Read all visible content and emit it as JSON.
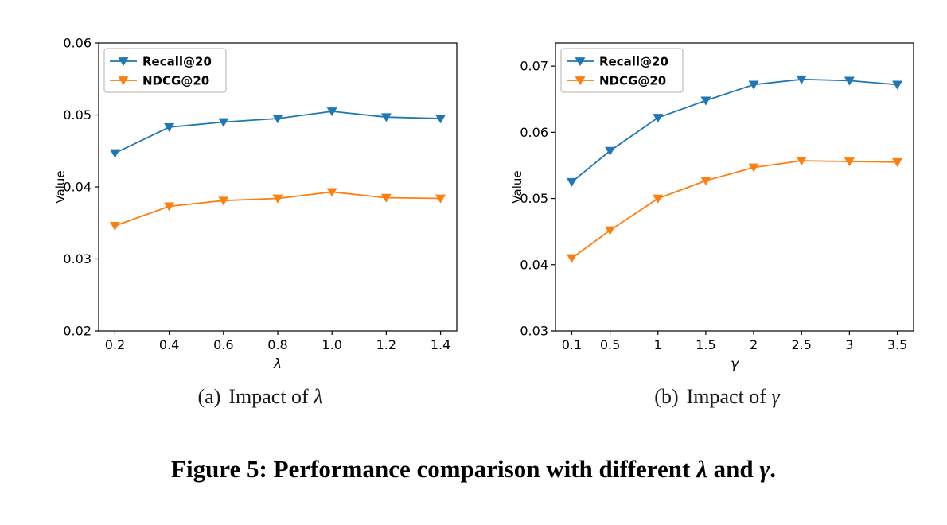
{
  "figure": {
    "subcaptions": [
      {
        "label": "(a)",
        "text": "Impact of",
        "symbol": "λ"
      },
      {
        "label": "(b)",
        "text": "Impact of",
        "symbol": "γ"
      }
    ],
    "caption": {
      "prefix": "Figure 5: Performance comparison with different",
      "sym1": "λ",
      "mid": "and",
      "sym2": "γ",
      "suffix": "."
    }
  },
  "colors": {
    "recall_blue": "#1f77b4",
    "ndcg_orange": "#ff7f0e",
    "axis": "#000000",
    "background": "#ffffff"
  },
  "chart_data": [
    {
      "type": "line",
      "title": "",
      "xlabel": "λ",
      "ylabel": "Value",
      "marker": "triangle-down",
      "grid": false,
      "legend_position": "upper left",
      "x": [
        0.2,
        0.4,
        0.6,
        0.8,
        1.0,
        1.2,
        1.4
      ],
      "xtick_labels": [
        "0.2",
        "0.4",
        "0.6",
        "0.8",
        "1.0",
        "1.2",
        "1.4"
      ],
      "xlim": [
        0.14,
        1.46
      ],
      "ylim": [
        0.02,
        0.06
      ],
      "yticks": [
        0.02,
        0.03,
        0.04,
        0.05,
        0.06
      ],
      "ytick_labels": [
        "0.02",
        "0.03",
        "0.04",
        "0.05",
        "0.06"
      ],
      "series": [
        {
          "name": "Recall@20",
          "color": "#1f77b4",
          "values": [
            0.0447,
            0.0483,
            0.049,
            0.0495,
            0.0505,
            0.0497,
            0.0495
          ]
        },
        {
          "name": "NDCG@20",
          "color": "#ff7f0e",
          "values": [
            0.0346,
            0.0373,
            0.0381,
            0.0384,
            0.0393,
            0.0385,
            0.0384
          ]
        }
      ]
    },
    {
      "type": "line",
      "title": "",
      "xlabel": "γ",
      "ylabel": "Value",
      "marker": "triangle-down",
      "grid": false,
      "legend_position": "upper left",
      "x": [
        0.1,
        0.5,
        1,
        1.5,
        2,
        2.5,
        3,
        3.5
      ],
      "xtick_labels": [
        "0.1",
        "0.5",
        "1",
        "1.5",
        "2",
        "2.5",
        "3",
        "3.5"
      ],
      "xlim": [
        -0.07,
        3.67
      ],
      "ylim": [
        0.03,
        0.0735
      ],
      "yticks": [
        0.03,
        0.04,
        0.05,
        0.06,
        0.07
      ],
      "ytick_labels": [
        "0.03",
        "0.04",
        "0.05",
        "0.06",
        "0.07"
      ],
      "series": [
        {
          "name": "Recall@20",
          "color": "#1f77b4",
          "values": [
            0.0525,
            0.0572,
            0.0622,
            0.0648,
            0.0672,
            0.068,
            0.0678,
            0.0672
          ]
        },
        {
          "name": "NDCG@20",
          "color": "#ff7f0e",
          "values": [
            0.041,
            0.0452,
            0.05,
            0.0527,
            0.0547,
            0.0557,
            0.0556,
            0.0555
          ]
        }
      ]
    }
  ]
}
